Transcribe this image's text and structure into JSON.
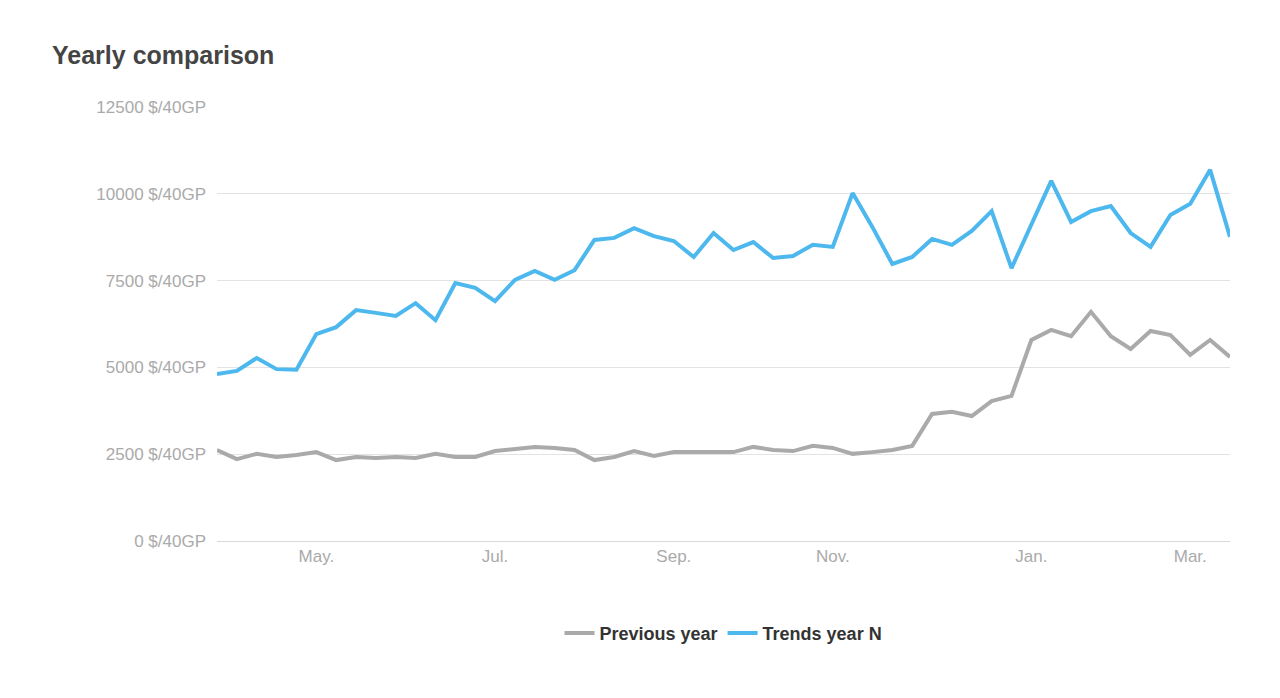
{
  "chart_data": {
    "type": "line",
    "title": "Yearly comparison",
    "categories": [
      null,
      null,
      null,
      null,
      null,
      "May.",
      null,
      null,
      null,
      null,
      null,
      null,
      null,
      null,
      "Jul.",
      null,
      null,
      null,
      null,
      null,
      null,
      null,
      null,
      "Sep.",
      null,
      null,
      null,
      null,
      null,
      null,
      null,
      "Nov.",
      null,
      null,
      null,
      null,
      null,
      null,
      null,
      null,
      null,
      "Jan.",
      null,
      null,
      null,
      null,
      null,
      null,
      null,
      "Mar.",
      null,
      null
    ],
    "series": [
      {
        "name": "Previous year",
        "color": "#aaaaaa",
        "values": [
          2620,
          2360,
          2510,
          2420,
          2480,
          2560,
          2330,
          2420,
          2390,
          2420,
          2390,
          2510,
          2420,
          2420,
          2590,
          2650,
          2710,
          2680,
          2620,
          2330,
          2420,
          2590,
          2450,
          2560,
          2560,
          2560,
          2560,
          2710,
          2620,
          2590,
          2740,
          2680,
          2510,
          2560,
          2620,
          2740,
          3660,
          3720,
          3600,
          4030,
          4180,
          5790,
          6080,
          5900,
          6600,
          5900,
          5530,
          6050,
          5930,
          5360,
          5790,
          5300
        ]
      },
      {
        "name": "Trends year N",
        "color": "#4db8ee",
        "values": [
          4810,
          4900,
          5270,
          4950,
          4930,
          5960,
          6160,
          6650,
          6570,
          6480,
          6850,
          6360,
          7430,
          7290,
          6910,
          7520,
          7780,
          7520,
          7800,
          8670,
          8730,
          9010,
          8780,
          8640,
          8180,
          8870,
          8380,
          8610,
          8150,
          8210,
          8530,
          8470,
          10020,
          9040,
          7980,
          8180,
          8700,
          8530,
          8930,
          9500,
          7860,
          9130,
          10370,
          9190,
          9500,
          9650,
          8870,
          8470,
          9390,
          9710,
          10690,
          8760
        ]
      }
    ],
    "ylim": [
      0,
      12500
    ],
    "yticks": [
      {
        "value": 0,
        "label": "0 $/40GP"
      },
      {
        "value": 2500,
        "label": "2500 $/40GP"
      },
      {
        "value": 5000,
        "label": "5000 $/40GP"
      },
      {
        "value": 7500,
        "label": "7500 $/40GP"
      },
      {
        "value": 10000,
        "label": "10000 $/40GP"
      },
      {
        "value": 12500,
        "label": "12500 $/40GP"
      }
    ],
    "grid": true,
    "legend": "bottom",
    "line_style": "solid"
  }
}
